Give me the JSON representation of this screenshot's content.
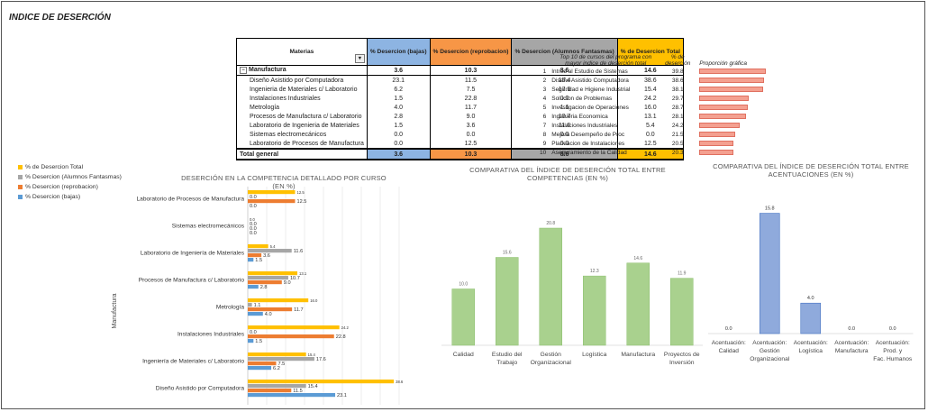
{
  "title": "INDICE DE DESERCIÓN",
  "pivot": {
    "headers": [
      "Materias",
      "% Desercion (bajas)",
      "% Desercion (reprobacion)",
      "% Desercion (Alumnos Fantasmas)",
      "% de Desercion Total"
    ],
    "group": {
      "label": "Manufactura",
      "values": [
        "3.6",
        "10.3",
        "8.6",
        "14.6"
      ]
    },
    "rows": [
      {
        "label": "Diseño Asistido por Computadora",
        "values": [
          "23.1",
          "11.5",
          "15.4",
          "38.6"
        ]
      },
      {
        "label": "Ingenieria de Materiales c/ Laboratorio",
        "values": [
          "6.2",
          "7.5",
          "17.6",
          "15.4"
        ]
      },
      {
        "label": "Instalaciones Industriales",
        "values": [
          "1.5",
          "22.8",
          "0.0",
          "24.2"
        ]
      },
      {
        "label": "Metrología",
        "values": [
          "4.0",
          "11.7",
          "1.1",
          "16.0"
        ]
      },
      {
        "label": "Procesos de Manufactura c/ Laboratorio",
        "values": [
          "2.8",
          "9.0",
          "10.7",
          "13.1"
        ]
      },
      {
        "label": "Laboratorio de Ingenieria de Materiales",
        "values": [
          "1.5",
          "3.6",
          "11.6",
          "5.4"
        ]
      },
      {
        "label": "Sistemas electromecánicos",
        "values": [
          "0.0",
          "0.0",
          "0.0",
          "0.0"
        ]
      },
      {
        "label": "Laboratorio de Procesos de Manufactura",
        "values": [
          "0.0",
          "12.5",
          "0.0",
          "12.5"
        ]
      }
    ],
    "total": {
      "label": "Total general",
      "values": [
        "3.6",
        "10.3",
        "8.6",
        "14.6"
      ]
    }
  },
  "top10": {
    "header": "Top 10 de cursos del programa con mayor indice de deserción total",
    "pct_header": "% de deserción",
    "bar_header": "Proporción gráfica",
    "rows": [
      {
        "rank": "1",
        "name": "Introd al Estudio de Sistemas",
        "value": 39.8,
        "label": "39.8"
      },
      {
        "rank": "2",
        "name": "Diseño Asistido Computadora",
        "value": 38.6,
        "label": "38.6"
      },
      {
        "rank": "3",
        "name": "Seguridad e Higiene Industrial",
        "value": 38.1,
        "label": "38.1"
      },
      {
        "rank": "4",
        "name": "Solucion de Problemas",
        "value": 29.7,
        "label": "29.7"
      },
      {
        "rank": "5",
        "name": "Investigacion de Operaciones",
        "value": 28.7,
        "label": "28.7"
      },
      {
        "rank": "6",
        "name": "Ingenieria Economica",
        "value": 28.1,
        "label": "28.1"
      },
      {
        "rank": "7",
        "name": "Instalaciones Industriales",
        "value": 24.2,
        "label": "24.2"
      },
      {
        "rank": "8",
        "name": "Mejora Desempeño de Proc",
        "value": 21.5,
        "label": "21.5"
      },
      {
        "rank": "9",
        "name": "Planeacion de Instalaciones",
        "value": 20.5,
        "label": "20.5"
      },
      {
        "rank": "10",
        "name": "Aseguramiento de la Calidad",
        "value": 20.3,
        "label": "20.3"
      }
    ]
  },
  "legend": [
    {
      "label": "% de Desercion Total",
      "color": "#ffc000"
    },
    {
      "label": "% Desercion (Alumnos Fantasmas)",
      "color": "#a6a6a6"
    },
    {
      "label": "% Desercion (reprobacion)",
      "color": "#ed7d31"
    },
    {
      "label": "% Desercion (bajas)",
      "color": "#5b9bd5"
    }
  ],
  "chart_data": [
    {
      "type": "bar",
      "orientation": "horizontal",
      "title": "DESERCIÓN EN LA COMPETENCIA DETALLADO POR CURSO (EN %)",
      "group_label": "Manufactura",
      "categories": [
        "Laboratorio de Procesos de Manufactura",
        "Sistemas electromecánicos",
        "Laboratorio de Ingeniería de Materiales",
        "Procesos de Manufactura c/ Laboratorio",
        "Metrología",
        "Instalaciones Industriales",
        "Ingeniería de Materiales c/ Laboratorio",
        "Diseño Asistido por Computadora"
      ],
      "series": [
        {
          "name": "% de Desercion Total",
          "color": "#ffc000",
          "values": [
            12.5,
            0.0,
            5.4,
            13.1,
            16.0,
            24.2,
            15.4,
            38.6
          ]
        },
        {
          "name": "% Desercion (Alumnos Fantasmas)",
          "color": "#a6a6a6",
          "values": [
            0.0,
            0.0,
            11.6,
            10.7,
            1.1,
            0.0,
            17.6,
            15.4
          ]
        },
        {
          "name": "% Desercion (reprobacion)",
          "color": "#ed7d31",
          "values": [
            12.5,
            0.0,
            3.6,
            9.0,
            11.7,
            22.8,
            7.5,
            11.5
          ]
        },
        {
          "name": "% Desercion (bajas)",
          "color": "#5b9bd5",
          "values": [
            0.0,
            0.0,
            1.5,
            2.8,
            4.0,
            1.5,
            6.2,
            23.1
          ]
        }
      ],
      "xlim": [
        0,
        40
      ],
      "grid": true
    },
    {
      "type": "bar",
      "title": "COMPARATIVA DEL ÍNDICE DE DESERCIÓN TOTAL ENTRE COMPETENCIAS (EN %)",
      "categories": [
        "Calidad",
        "Estudio del Trabajo",
        "Gestión Organizacional",
        "Logística",
        "Manufactura",
        "Proyectos de Inversión"
      ],
      "values": [
        10.0,
        15.6,
        20.8,
        12.3,
        14.6,
        11.9
      ],
      "labels": [
        "10.0",
        "15.6",
        "20.8",
        "12.3",
        "14.6",
        "11.9"
      ],
      "color": "#a9d18e",
      "ylim": [
        0,
        24
      ]
    },
    {
      "type": "bar",
      "title": "COMPARATIVA DEL ÍNDICE DE DESERCIÓN TOTAL ENTRE ACENTUACIONES (EN %)",
      "categories": [
        "Acentuación: Calidad",
        "Acentuación: Gestión Organizacional",
        "Acentuación: Logística",
        "Acentuación: Manufactura",
        "Acentuación: Prod. y Fac. Humanos"
      ],
      "values": [
        0.0,
        15.8,
        4.0,
        0.0,
        0.0
      ],
      "labels": [
        "0.0",
        "15.8",
        "4.0",
        "0.0",
        "0.0"
      ],
      "color": "#8faadc",
      "ylim": [
        0,
        18
      ]
    }
  ]
}
